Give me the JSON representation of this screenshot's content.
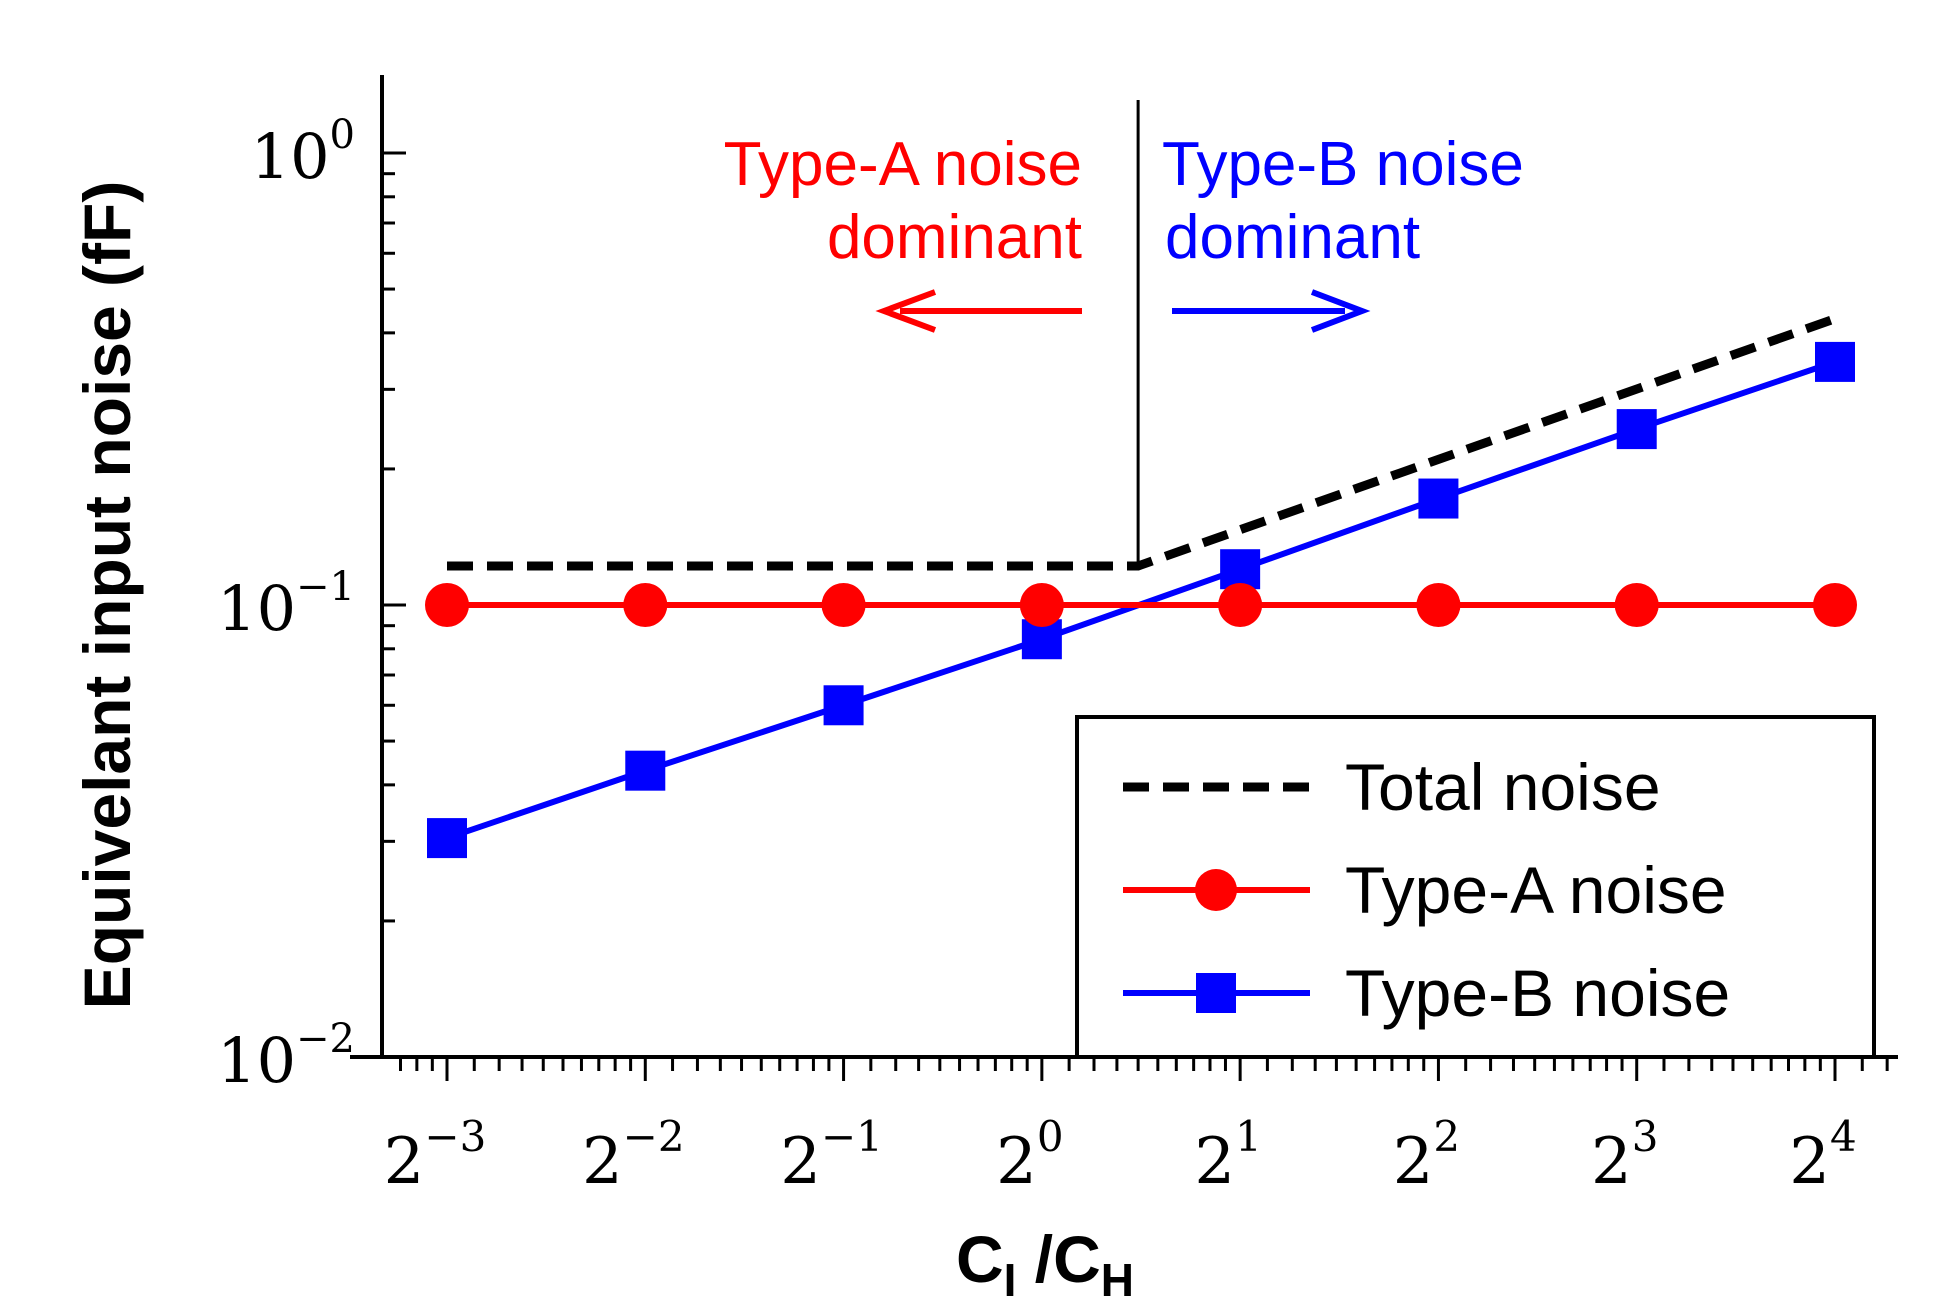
{
  "chart_data": {
    "type": "line",
    "title": "",
    "xlabel": {
      "main": "C",
      "sub1": "I",
      "mid": " /C",
      "sub2": "H"
    },
    "ylabel": "Equivelant input noise (fF)",
    "xscale": "log2",
    "yscale": "log10",
    "xlim_exp": [
      -3.4,
      4.3
    ],
    "ylim": [
      0.01,
      1.6
    ],
    "x": [
      0.125,
      0.25,
      0.5,
      1,
      2,
      4,
      8,
      16
    ],
    "x_tick_labels": [
      {
        "base": "2",
        "exp": "−3"
      },
      {
        "base": "2",
        "exp": "−2"
      },
      {
        "base": "2",
        "exp": "−1"
      },
      {
        "base": "2",
        "exp": "0"
      },
      {
        "base": "2",
        "exp": "1"
      },
      {
        "base": "2",
        "exp": "2"
      },
      {
        "base": "2",
        "exp": "3"
      },
      {
        "base": "2",
        "exp": "4"
      }
    ],
    "y_tick_labels": [
      {
        "base": "10",
        "exp": "−2",
        "value": 0.01
      },
      {
        "base": "10",
        "exp": "−1",
        "value": 0.1
      },
      {
        "base": "10",
        "exp": "0",
        "value": 1
      }
    ],
    "series": [
      {
        "name": "Total noise",
        "style": "dashed",
        "marker": "none",
        "color": "#000000",
        "x": [
          0.125,
          1.4,
          16
        ],
        "values": [
          0.122,
          0.122,
          0.43
        ]
      },
      {
        "name": "Type-A noise",
        "style": "solid",
        "marker": "circle",
        "color": "#ff0000",
        "x": [
          0.125,
          0.25,
          0.5,
          1,
          2,
          4,
          8,
          16
        ],
        "values": [
          0.1,
          0.1,
          0.1,
          0.1,
          0.1,
          0.1,
          0.1,
          0.1
        ]
      },
      {
        "name": "Type-B noise",
        "style": "solid",
        "marker": "square",
        "color": "#0000ff",
        "x": [
          0.125,
          0.25,
          0.5,
          1,
          2,
          4,
          8,
          16
        ],
        "values": [
          0.0305,
          0.043,
          0.06,
          0.084,
          0.12,
          0.172,
          0.245,
          0.345
        ]
      }
    ],
    "divider_x": 1.4,
    "annotations": {
      "left": {
        "line1": "Type-A noise",
        "line2": "dominant",
        "color": "#ff0000",
        "arrow": "left"
      },
      "right": {
        "line1": "Type-B noise",
        "line2": "dominant",
        "color": "#0000ff",
        "arrow": "right"
      }
    },
    "legend": {
      "position": "bottom-right",
      "items": [
        "Total noise",
        "Type-A noise",
        "Type-B noise"
      ]
    }
  }
}
